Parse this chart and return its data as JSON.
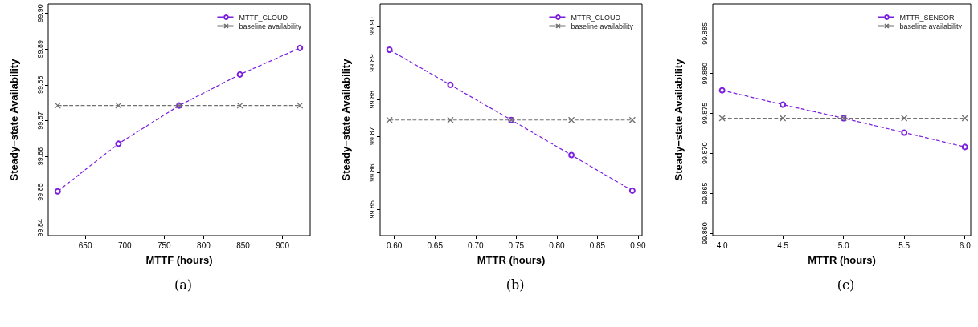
{
  "chart_data": [
    {
      "type": "line",
      "xlabel": "MTTF (hours)",
      "ylabel": "Steady−state Availability",
      "annotations": [
        "(a)"
      ],
      "legend": "top right",
      "grid": false,
      "xlim": [
        603,
        935
      ],
      "ylim": [
        99.8378,
        99.9026
      ],
      "xticks": [
        650,
        700,
        750,
        800,
        850,
        900
      ],
      "yticks": [
        99.84,
        99.85,
        99.86,
        99.87,
        99.88,
        {
          "value": 99.89,
          "label": "99.89"
        },
        {
          "value": 99.9,
          "label": "99.90"
        }
      ],
      "series": [
        {
          "name": "MTTF_CLOUD",
          "color": "#7b1fe0",
          "marker": "circle",
          "line_style": "dashed",
          "x": [
            615,
            692,
            769,
            846,
            922
          ],
          "values": [
            99.8502,
            99.8635,
            99.8742,
            99.8829,
            99.8903
          ]
        },
        {
          "name": "baseline availability",
          "color": "#707070",
          "marker": "cross",
          "line_style": "dashed",
          "x": [
            615,
            692,
            769,
            846,
            922
          ],
          "values": [
            99.8742,
            99.8742,
            99.8742,
            99.8742,
            99.8742
          ]
        }
      ]
    },
    {
      "type": "line",
      "xlabel": "MTTR (hours)",
      "ylabel": "Steady−state Availability",
      "annotations": [
        "(b)"
      ],
      "legend": "top right",
      "grid": false,
      "xlim": [
        0.5825,
        0.905
      ],
      "ylim": [
        99.8428,
        99.9061
      ],
      "xticks": [
        {
          "value": 0.6,
          "label": "0.60"
        },
        0.65,
        {
          "value": 0.7,
          "label": "0.70"
        },
        0.75,
        {
          "value": 0.8,
          "label": "0.80"
        },
        0.85,
        {
          "value": 0.9,
          "label": "0.90"
        }
      ],
      "yticks": [
        99.85,
        99.86,
        99.87,
        99.88,
        99.89,
        {
          "value": 99.9,
          "label": "99.90"
        }
      ],
      "series": [
        {
          "name": "MTTR_CLOUD",
          "color": "#7b1fe0",
          "marker": "circle",
          "line_style": "dashed",
          "x": [
            0.594,
            0.669,
            0.744,
            0.818,
            0.893
          ],
          "values": [
            99.8936,
            99.884,
            99.8744,
            99.8648,
            99.8551
          ]
        },
        {
          "name": "baseline availability",
          "color": "#707070",
          "marker": "cross",
          "line_style": "dashed",
          "x": [
            0.594,
            0.669,
            0.744,
            0.818,
            0.893
          ],
          "values": [
            99.8744,
            99.8744,
            99.8744,
            99.8744,
            99.8744
          ]
        }
      ]
    },
    {
      "type": "line",
      "xlabel": "MTTR (hours)",
      "ylabel": "Steady−state Availability",
      "annotations": [
        "(c)"
      ],
      "legend": "top right",
      "grid": false,
      "xlim": [
        3.923,
        6.048
      ],
      "ylim": [
        99.8597,
        99.8887
      ],
      "xticks": [
        {
          "value": 4,
          "label": "4.0"
        },
        4.5,
        {
          "value": 5,
          "label": "5.0"
        },
        5.5,
        {
          "value": 6,
          "label": "6.0"
        }
      ],
      "yticks": [
        {
          "value": 99.86,
          "label": "99.860"
        },
        99.865,
        {
          "value": 99.87,
          "label": "99.870"
        },
        99.875,
        {
          "value": 99.88,
          "label": "99.880"
        },
        99.885
      ],
      "series": [
        {
          "name": "MTTR_SENSOR",
          "color": "#7b1fe0",
          "marker": "circle",
          "line_style": "dashed",
          "x": [
            4,
            4.5,
            5,
            5.5,
            6
          ],
          "values": [
            99.8779,
            99.8761,
            99.8744,
            99.8726,
            99.8708
          ]
        },
        {
          "name": "baseline availability",
          "color": "#707070",
          "marker": "cross",
          "line_style": "dashed",
          "x": [
            4,
            4.5,
            5,
            5.5,
            6
          ],
          "values": [
            99.8744,
            99.8744,
            99.8744,
            99.8744,
            99.8744
          ]
        }
      ]
    }
  ]
}
